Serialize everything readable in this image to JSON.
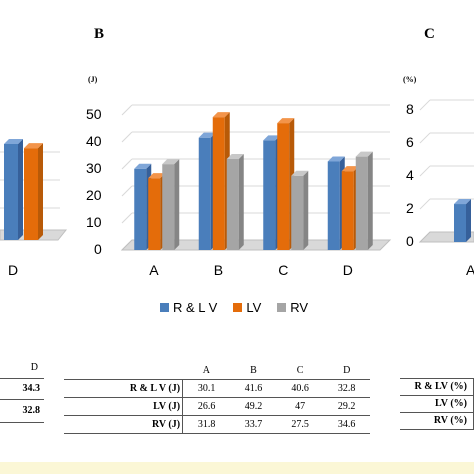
{
  "panels": {
    "a_partial": {
      "category_label": "D"
    },
    "b": {
      "letter": "B",
      "unit": "(J)"
    },
    "c": {
      "letter": "C",
      "unit": "(%)",
      "first_category": "A"
    }
  },
  "legend": [
    {
      "label": "R & L V",
      "color": "#4a7ebb"
    },
    {
      "label": "LV",
      "color": "#e46c0a"
    },
    {
      "label": "RV",
      "color": "#a5a5a5"
    }
  ],
  "colors": {
    "r_lv": "#4a7ebb",
    "lv": "#e46c0a",
    "rv": "#a5a5a5",
    "grid": "#d9d9d9",
    "floor": "#d9d9d9"
  },
  "chart_data": [
    {
      "type": "bar",
      "panel": "A (partially visible)",
      "categories": [
        "D"
      ],
      "series": [
        {
          "name": "R & L V",
          "values": [
            34.3
          ]
        },
        {
          "name": "LV",
          "values": [
            32.8
          ]
        }
      ]
    },
    {
      "type": "bar",
      "panel": "B",
      "categories": [
        "A",
        "B",
        "C",
        "D"
      ],
      "series": [
        {
          "name": "R & L V",
          "values": [
            30.1,
            41.6,
            40.6,
            32.8
          ]
        },
        {
          "name": "LV",
          "values": [
            26.6,
            49.2,
            47,
            29.2
          ]
        },
        {
          "name": "RV",
          "values": [
            31.8,
            33.7,
            27.5,
            34.6
          ]
        }
      ],
      "ylabel": "(J)",
      "ylim": [
        0,
        50
      ],
      "yticks": [
        0,
        10,
        20,
        30,
        40,
        50
      ],
      "grid": true,
      "legend": "bottom"
    },
    {
      "type": "bar",
      "panel": "C (partially visible)",
      "categories": [
        "A"
      ],
      "series": [
        {
          "name": "R & L V",
          "values": [
            2.3
          ]
        }
      ],
      "ylabel": "(%)",
      "ylim": [
        0,
        8
      ],
      "yticks": [
        0,
        2,
        4,
        6,
        8
      ],
      "grid": true
    }
  ],
  "tables": {
    "a_partial": {
      "header": "D",
      "rows": [
        "34.3",
        "32.8"
      ]
    },
    "b": {
      "header": [
        "A",
        "B",
        "C",
        "D"
      ],
      "rows": [
        {
          "label": "R & L V (J)",
          "values": [
            "30.1",
            "41.6",
            "40.6",
            "32.8"
          ]
        },
        {
          "label": "LV (J)",
          "values": [
            "26.6",
            "49.2",
            "47",
            "29.2"
          ]
        },
        {
          "label": "RV (J)",
          "values": [
            "31.8",
            "33.7",
            "27.5",
            "34.6"
          ]
        }
      ]
    },
    "c": {
      "rows": [
        {
          "label": "R & LV (%)"
        },
        {
          "label": "LV (%)"
        },
        {
          "label": "RV (%)"
        }
      ]
    }
  }
}
